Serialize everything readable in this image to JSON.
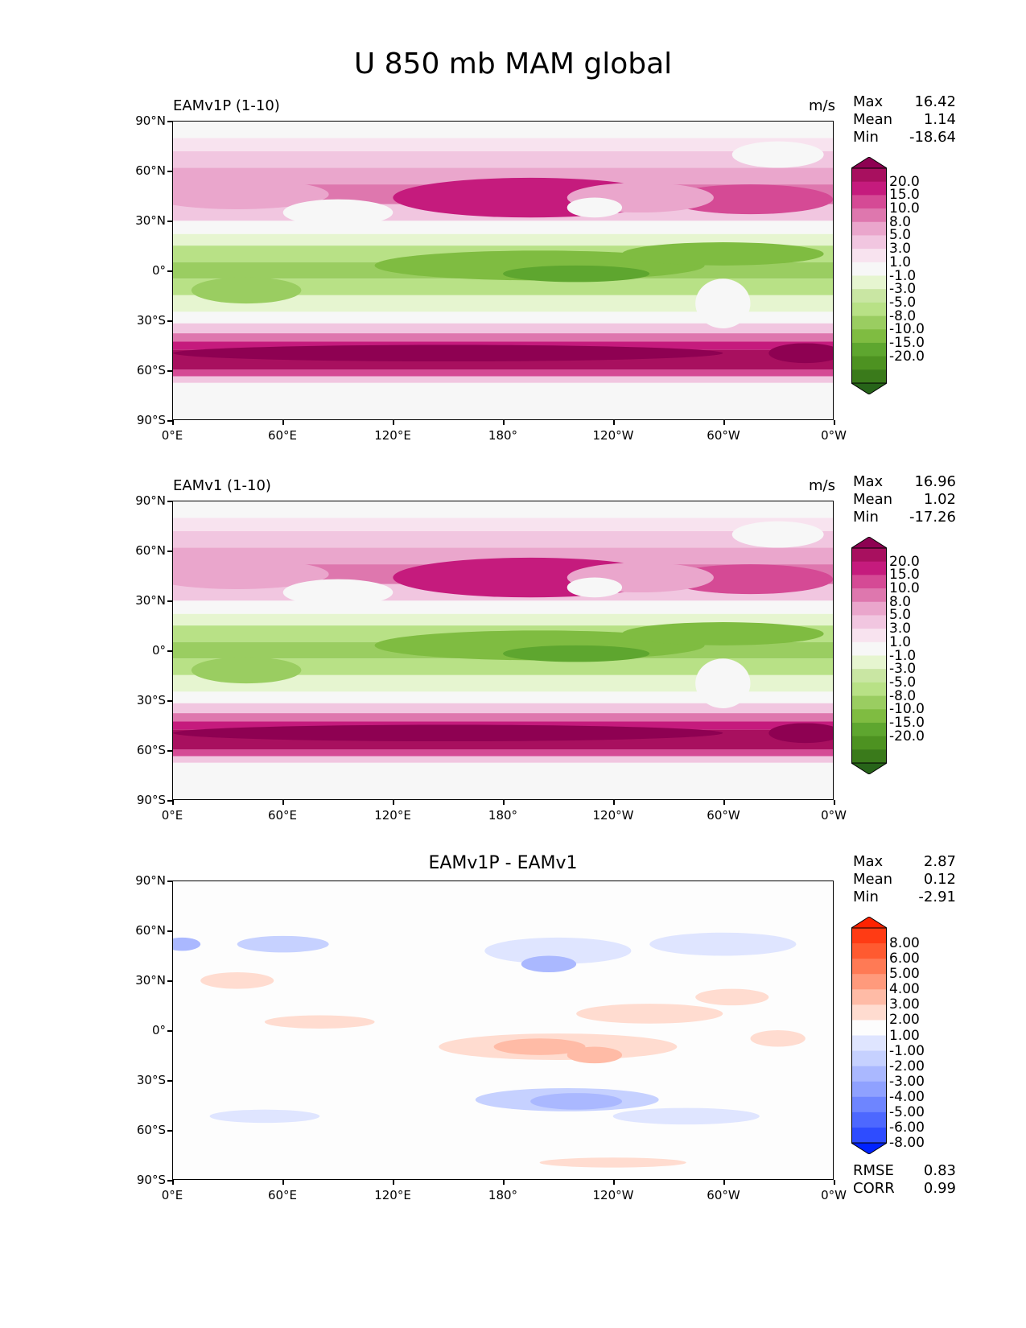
{
  "suptitle": "U 850 mb MAM global",
  "xticks": [
    "0°E",
    "60°E",
    "120°E",
    "180°",
    "120°W",
    "60°W",
    "0°W"
  ],
  "yticks": [
    "90°N",
    "60°N",
    "30°N",
    "0°",
    "30°S",
    "60°S",
    "90°S"
  ],
  "panels": [
    {
      "left_title": "EAMv1P (1-10)",
      "center_title": "",
      "units": "m/s",
      "stats": {
        "max_label": "Max",
        "max": "16.42",
        "mean_label": "Mean",
        "mean": "1.14",
        "min_label": "Min",
        "min": "-18.64"
      },
      "levels": [
        "20.0",
        "15.0",
        "10.0",
        "8.0",
        "5.0",
        "3.0",
        "1.0",
        "-1.0",
        "-3.0",
        "-5.0",
        "-8.0",
        "-10.0",
        "-15.0",
        "-20.0"
      ],
      "colors": [
        "#8e0152",
        "#a8105f",
        "#c51b7d",
        "#d54a95",
        "#de77ae",
        "#eaa6cc",
        "#f1c6e0",
        "#f8e3ef",
        "#f7f7f7",
        "#e6f5d0",
        "#c9e6a3",
        "#b8e186",
        "#9acd61",
        "#7fbc41",
        "#5ea62f",
        "#4d9221",
        "#3a7a1b",
        "#276419"
      ],
      "fill_mode": "model"
    },
    {
      "left_title": "EAMv1 (1-10)",
      "center_title": "",
      "units": "m/s",
      "stats": {
        "max_label": "Max",
        "max": "16.96",
        "mean_label": "Mean",
        "mean": "1.02",
        "min_label": "Min",
        "min": "-17.26"
      },
      "levels": [
        "20.0",
        "15.0",
        "10.0",
        "8.0",
        "5.0",
        "3.0",
        "1.0",
        "-1.0",
        "-3.0",
        "-5.0",
        "-8.0",
        "-10.0",
        "-15.0",
        "-20.0"
      ],
      "colors": [
        "#8e0152",
        "#a8105f",
        "#c51b7d",
        "#d54a95",
        "#de77ae",
        "#eaa6cc",
        "#f1c6e0",
        "#f8e3ef",
        "#f7f7f7",
        "#e6f5d0",
        "#c9e6a3",
        "#b8e186",
        "#9acd61",
        "#7fbc41",
        "#5ea62f",
        "#4d9221",
        "#3a7a1b",
        "#276419"
      ],
      "fill_mode": "model"
    },
    {
      "left_title": "",
      "center_title": "EAMv1P - EAMv1",
      "units": "",
      "stats": {
        "max_label": "Max",
        "max": "2.87",
        "mean_label": "Mean",
        "mean": "0.12",
        "min_label": "Min",
        "min": "-2.91"
      },
      "levels": [
        "8.00",
        "6.00",
        "5.00",
        "4.00",
        "3.00",
        "2.00",
        "1.00",
        "-1.00",
        "-2.00",
        "-3.00",
        "-4.00",
        "-5.00",
        "-6.00",
        "-8.00"
      ],
      "colors": [
        "#ff2200",
        "#ff3b14",
        "#ff5a30",
        "#ff7a55",
        "#ff9a7c",
        "#ffbba6",
        "#ffdcd0",
        "#fdfdfd",
        "#dfe5ff",
        "#c6d1ff",
        "#aab8ff",
        "#8fa1ff",
        "#6e85ff",
        "#4d68ff",
        "#2e4cff",
        "#0022ff"
      ],
      "fill_mode": "diff",
      "metrics": {
        "rmse_label": "RMSE",
        "rmse": "0.83",
        "corr_label": "CORR",
        "corr": "0.99"
      }
    }
  ],
  "chart_data": [
    {
      "type": "heatmap",
      "title": "EAMv1P (1-10)",
      "units": "m/s",
      "xlim": [
        0,
        360
      ],
      "ylim": [
        -90,
        90
      ],
      "field_summary": {
        "max": 16.42,
        "mean": 1.14,
        "min": -18.64
      },
      "contour_levels": [
        -20,
        -15,
        -10,
        -8,
        -5,
        -3,
        -1,
        1,
        3,
        5,
        8,
        10,
        15,
        20
      ]
    },
    {
      "type": "heatmap",
      "title": "EAMv1 (1-10)",
      "units": "m/s",
      "xlim": [
        0,
        360
      ],
      "ylim": [
        -90,
        90
      ],
      "field_summary": {
        "max": 16.96,
        "mean": 1.02,
        "min": -17.26
      },
      "contour_levels": [
        -20,
        -15,
        -10,
        -8,
        -5,
        -3,
        -1,
        1,
        3,
        5,
        8,
        10,
        15,
        20
      ]
    },
    {
      "type": "heatmap",
      "title": "EAMv1P - EAMv1",
      "xlim": [
        0,
        360
      ],
      "ylim": [
        -90,
        90
      ],
      "field_summary": {
        "max": 2.87,
        "mean": 0.12,
        "min": -2.91,
        "rmse": 0.83,
        "corr": 0.99
      },
      "contour_levels": [
        -8,
        -6,
        -5,
        -4,
        -3,
        -2,
        -1,
        1,
        2,
        3,
        4,
        5,
        6,
        8
      ]
    }
  ]
}
